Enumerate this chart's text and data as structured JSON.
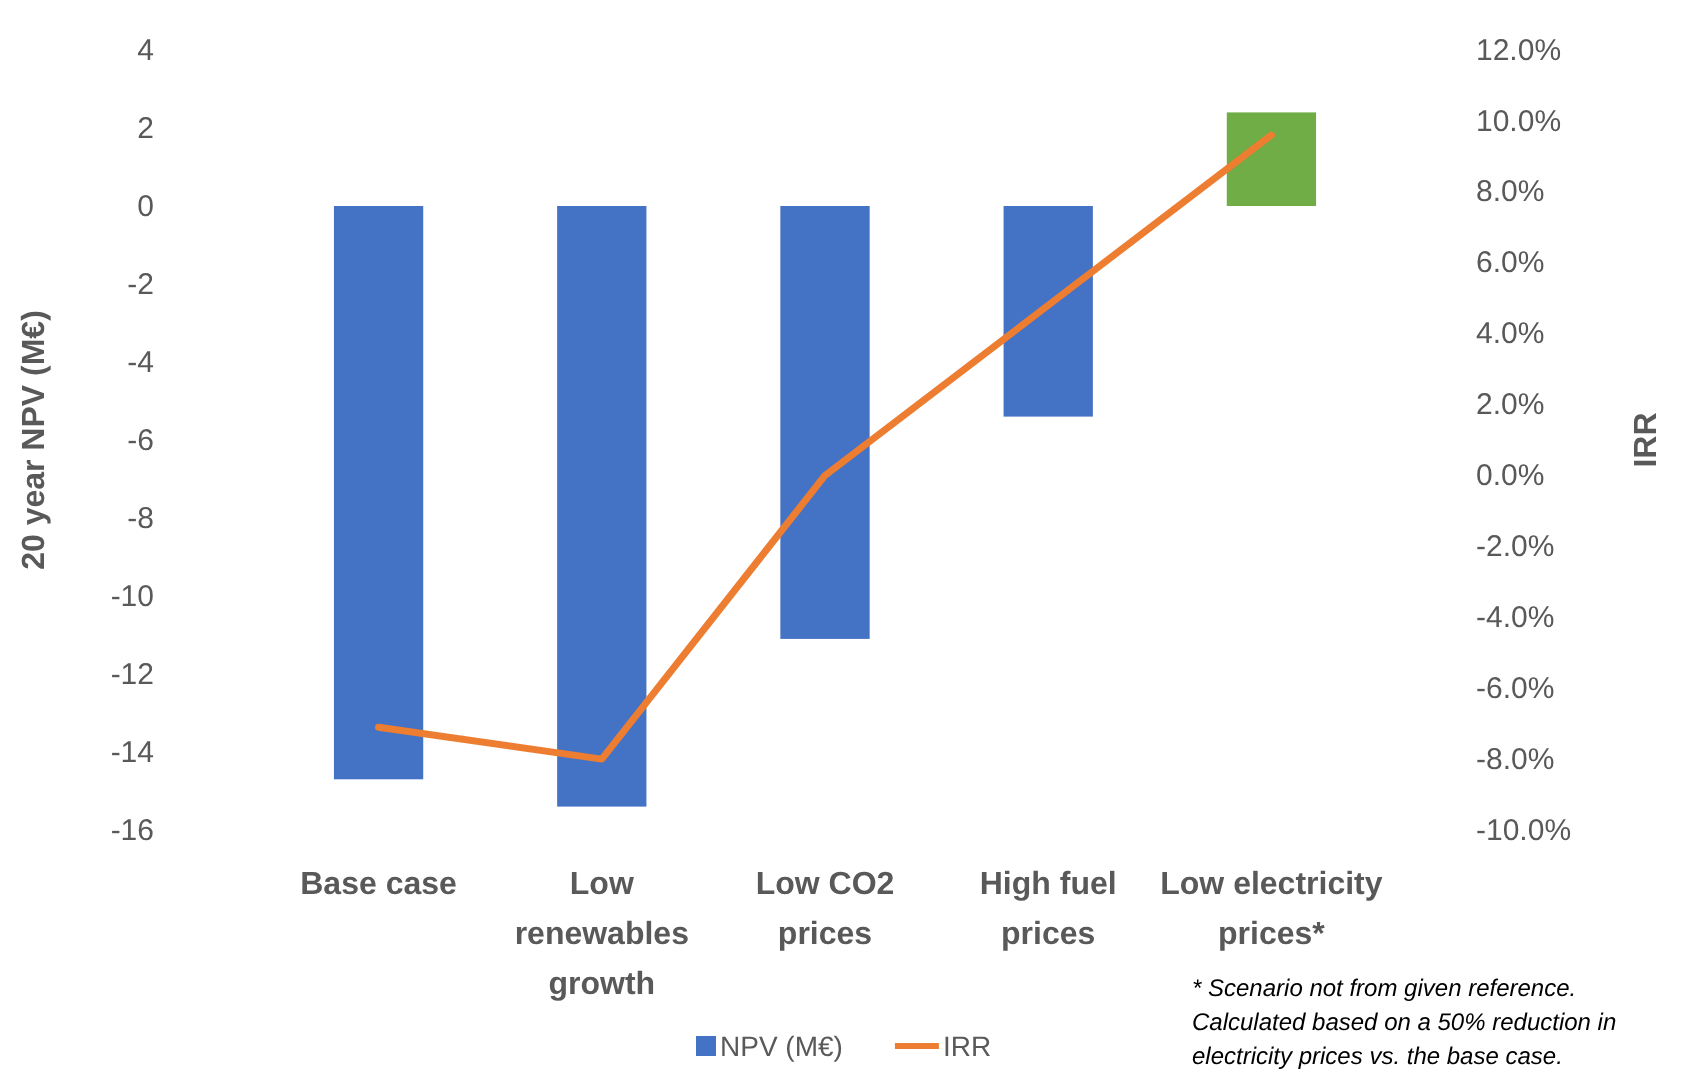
{
  "chart_data": {
    "type": "bar",
    "categories": [
      "Base case",
      "Low renewables growth",
      "Low CO2 prices",
      "High fuel prices",
      "Low electricity prices*"
    ],
    "series": [
      {
        "name": "NPV (M€)",
        "color": "#4472c4",
        "colors": [
          "#4472c4",
          "#4472c4",
          "#4472c4",
          "#4472c4",
          "#70ad47"
        ],
        "values": [
          -14.7,
          -15.4,
          -11.1,
          -5.4,
          2.4
        ]
      },
      {
        "name": "IRR",
        "type": "line",
        "axis": "y2",
        "color": "#ed7d31",
        "values": [
          -7.1,
          -8.0,
          0.0,
          4.8,
          9.6
        ]
      }
    ],
    "ylabel": "20 year NPV (M€)",
    "y2label": "IRR",
    "ylim": [
      -16,
      4
    ],
    "yticks": [
      -16,
      -14,
      -12,
      -10,
      -8,
      -6,
      -4,
      -2,
      0,
      2,
      4
    ],
    "y2lim": [
      -10,
      12
    ],
    "y2ticks": [
      {
        "value": -10,
        "label": "-10.0%"
      },
      {
        "value": -8,
        "label": "-8.0%"
      },
      {
        "value": -6,
        "label": "-6.0%"
      },
      {
        "value": -4,
        "label": "-4.0%"
      },
      {
        "value": -2,
        "label": "-2.0%"
      },
      {
        "value": 0,
        "label": "0.0%"
      },
      {
        "value": 2,
        "label": "2.0%"
      },
      {
        "value": 4,
        "label": "4.0%"
      },
      {
        "value": 6,
        "label": "6.0%"
      },
      {
        "value": 8,
        "label": "8.0%"
      },
      {
        "value": 10,
        "label": "10.0%"
      },
      {
        "value": 12,
        "label": "12.0%"
      }
    ],
    "legend": "bottom",
    "grid": false,
    "annotations": [
      "* Scenario not from given reference. Calculated based on a 50% reduction in electricity prices vs. the base case."
    ]
  }
}
